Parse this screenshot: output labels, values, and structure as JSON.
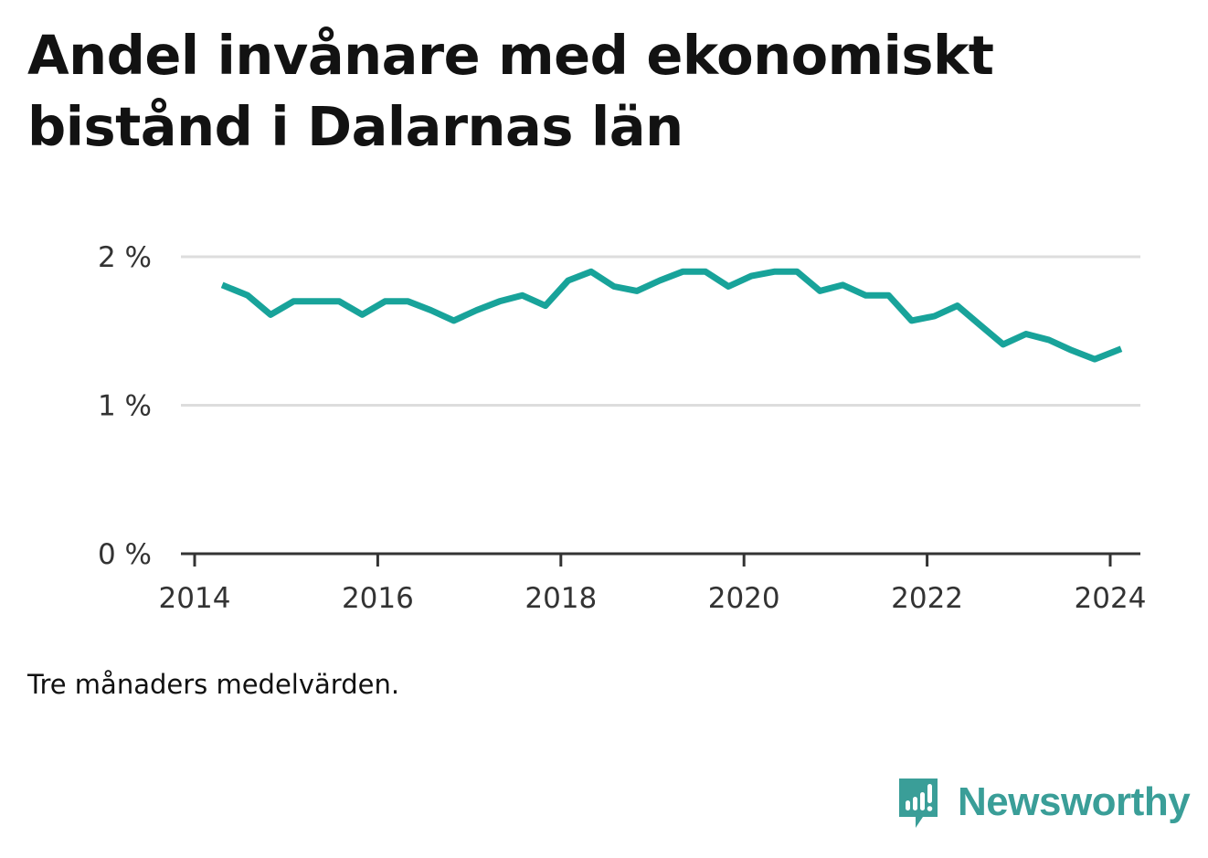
{
  "title": "Andel invånare med ekonomiskt bistånd i Dalarnas län",
  "note": "Tre månaders medelvärden.",
  "brand": {
    "name": "Newsworthy",
    "icon": "newsworthy-logo-icon",
    "color": "#3a9e98"
  },
  "chart_data": {
    "type": "line",
    "title": "Andel invånare med ekonomiskt bistånd i Dalarnas län",
    "xlabel": "",
    "ylabel": "",
    "x_ticks": [
      "2014",
      "2016",
      "2018",
      "2020",
      "2022",
      "2024"
    ],
    "y_ticks": [
      "0 %",
      "1 %",
      "2 %"
    ],
    "xlim": [
      2014,
      2024.4
    ],
    "ylim": [
      0,
      2
    ],
    "grid": true,
    "line_color": "#18a39a",
    "series": [
      {
        "x": [
          2014.3,
          2014.58,
          2014.83,
          2015.08,
          2015.33,
          2015.58,
          2015.83,
          2016.08,
          2016.33,
          2016.58,
          2016.83,
          2017.08,
          2017.33,
          2017.58,
          2017.83,
          2018.08,
          2018.33,
          2018.58,
          2018.83,
          2019.08,
          2019.33,
          2019.58,
          2019.83,
          2020.08,
          2020.33,
          2020.58,
          2020.83,
          2021.08,
          2021.33,
          2021.58,
          2021.83,
          2022.08,
          2022.33,
          2022.58,
          2022.83,
          2023.08,
          2023.33,
          2023.58,
          2023.83,
          2024.12
        ],
        "values": [
          1.81,
          1.74,
          1.61,
          1.7,
          1.7,
          1.7,
          1.61,
          1.7,
          1.7,
          1.64,
          1.57,
          1.64,
          1.7,
          1.74,
          1.67,
          1.84,
          1.9,
          1.8,
          1.77,
          1.84,
          1.9,
          1.9,
          1.8,
          1.87,
          1.9,
          1.9,
          1.77,
          1.81,
          1.74,
          1.74,
          1.57,
          1.6,
          1.67,
          1.54,
          1.41,
          1.48,
          1.44,
          1.37,
          1.31,
          1.38
        ]
      }
    ]
  }
}
